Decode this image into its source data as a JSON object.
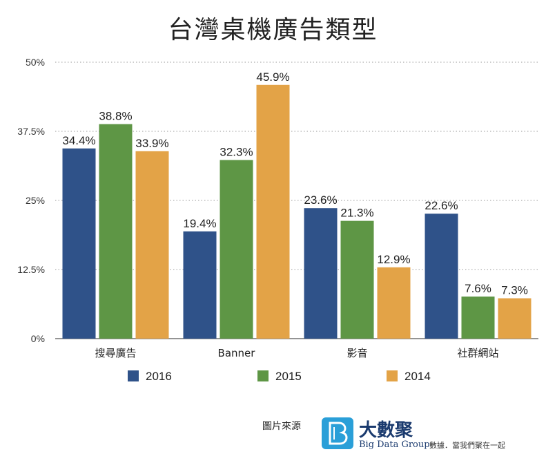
{
  "chart_data": {
    "type": "bar",
    "title": "台灣桌機廣告類型",
    "categories": [
      "搜尋廣告",
      "Banner",
      "影音",
      "社群網站"
    ],
    "series": [
      {
        "name": "2016",
        "color": "#2f5289",
        "values": [
          34.4,
          19.4,
          23.6,
          22.6
        ],
        "labels": [
          "34.4%",
          "19.4%",
          "23.6%",
          "22.6%"
        ]
      },
      {
        "name": "2015",
        "color": "#5e9645",
        "values": [
          38.8,
          32.3,
          21.3,
          7.6
        ],
        "labels": [
          "38.8%",
          "32.3%",
          "21.3%",
          "7.6%"
        ]
      },
      {
        "name": "2014",
        "color": "#e3a347",
        "values": [
          33.9,
          45.9,
          12.9,
          7.3
        ],
        "labels": [
          "33.9%",
          "45.9%",
          "12.9%",
          "7.3%"
        ]
      }
    ],
    "ylim": [
      0,
      50
    ],
    "yticks": [
      0,
      12.5,
      25,
      37.5,
      50
    ],
    "ytick_labels": [
      "0%",
      "12.5%",
      "25%",
      "37.5%",
      "50%"
    ],
    "grid": true,
    "legend": "bottom"
  },
  "source": {
    "label": "圖片來源",
    "logo_name": "大數聚",
    "logo_en": "Big Data Group",
    "logo_slogan": "數據．當我們聚在一起"
  }
}
